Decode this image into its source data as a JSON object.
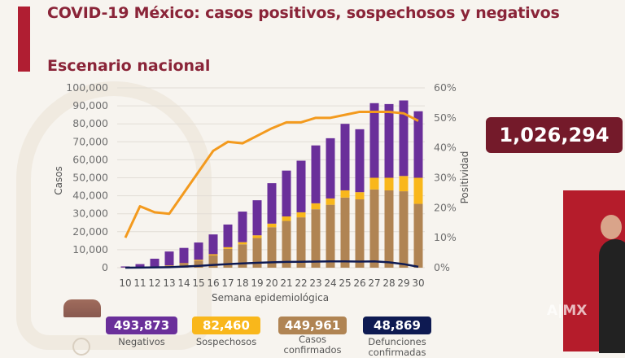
{
  "header": {
    "title": "COVID-19 México: casos positivos, sospechosos y negativos",
    "subtitle": "Escenario nacional"
  },
  "total": {
    "value": "1,026,294"
  },
  "legend": [
    {
      "value": "493,873",
      "label1": "Negativos",
      "label2": "",
      "color": "#6a2f9a"
    },
    {
      "value": "82,460",
      "label1": "Sospechosos",
      "label2": "",
      "color": "#f9b71b"
    },
    {
      "value": "449,961",
      "label1": "Casos",
      "label2": "confirmados",
      "color": "#b08453"
    },
    {
      "value": "48,869",
      "label1": "Defunciones",
      "label2": "confirmadas",
      "color": "#0e1a52"
    }
  ],
  "watermark": "A|MX",
  "chart_data": {
    "type": "bar",
    "stacked": true,
    "title": "Escenario nacional",
    "xlabel": "Semana epidemiológica",
    "ylabel": "Casos",
    "y2label": "Positividad",
    "ylim": [
      0,
      100000
    ],
    "y2lim": [
      0,
      60
    ],
    "yticks": [
      "0",
      "10,000",
      "20,000",
      "30,000",
      "40,000",
      "50,000",
      "60,000",
      "70,000",
      "80,000",
      "90,000",
      "100,000"
    ],
    "y2ticks": [
      "0%",
      "10%",
      "20%",
      "30%",
      "40%",
      "50%",
      "60%"
    ],
    "grid": true,
    "categories": [
      "10",
      "11",
      "12",
      "13",
      "14",
      "15",
      "16",
      "17",
      "18",
      "19",
      "20",
      "21",
      "22",
      "23",
      "24",
      "25",
      "26",
      "27",
      "28",
      "29",
      "30"
    ],
    "series": [
      {
        "name": "Casos confirmados",
        "kind": "bar",
        "color": "#b08453",
        "values": [
          100,
          300,
          600,
          1100,
          2200,
          3900,
          6800,
          10500,
          13000,
          16500,
          22500,
          26000,
          28000,
          32500,
          35000,
          39000,
          38000,
          43500,
          43000,
          42500,
          35500
        ]
      },
      {
        "name": "Sospechosos",
        "kind": "bar",
        "color": "#f9b71b",
        "values": [
          0,
          50,
          100,
          200,
          300,
          500,
          700,
          900,
          1200,
          1500,
          2000,
          2500,
          2800,
          3300,
          3500,
          4000,
          4000,
          6500,
          7000,
          8500,
          14500
        ]
      },
      {
        "name": "Negativos",
        "kind": "bar",
        "color": "#6a2f9a",
        "values": [
          600,
          1650,
          4300,
          7700,
          8500,
          9600,
          11000,
          12600,
          17000,
          19500,
          22500,
          25500,
          28700,
          32200,
          33500,
          37000,
          35000,
          41500,
          41000,
          42000,
          37000
        ]
      },
      {
        "name": "Defunciones",
        "kind": "line",
        "axis": "left",
        "color": "#0e1a52",
        "values": [
          0,
          50,
          150,
          300,
          600,
          1000,
          1500,
          2000,
          2400,
          2700,
          3000,
          3200,
          3300,
          3400,
          3500,
          3500,
          3400,
          3500,
          3000,
          2000,
          500
        ]
      },
      {
        "name": "Positividad",
        "kind": "line",
        "axis": "right",
        "unit": "%",
        "color": "#f39a1e",
        "values": [
          10,
          20.5,
          18.5,
          18,
          25,
          32,
          39,
          42,
          41.5,
          44,
          46.5,
          48.5,
          48.5,
          50,
          50,
          51,
          52,
          52,
          52,
          51.5,
          49
        ]
      }
    ]
  }
}
